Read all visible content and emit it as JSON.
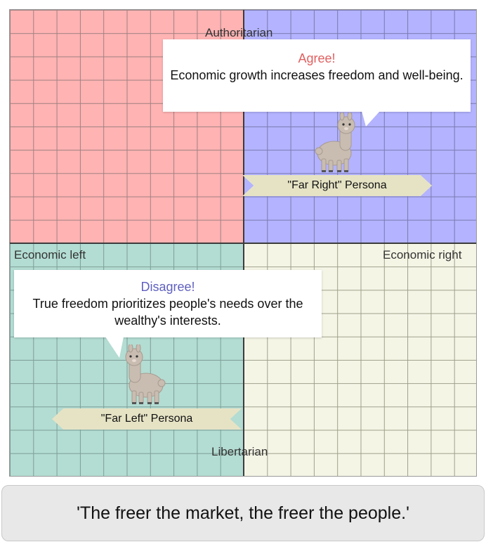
{
  "axes": {
    "top": "Authoritarian",
    "bottom": "Libertarian",
    "left": "Economic left",
    "right": "Economic right"
  },
  "quadrant_colors": {
    "authoritarian_left": "#ffb3b3",
    "authoritarian_right": "#b3b3ff",
    "libertarian_left": "#b3dcd2",
    "libertarian_right": "#f5f5e6"
  },
  "right_persona": {
    "verdict": "Agree!",
    "verdict_color": "#e06060",
    "statement": "Economic growth increases freedom and well-being.",
    "name": "\"Far Right\" Persona",
    "icon": "llama-icon"
  },
  "left_persona": {
    "verdict": "Disagree!",
    "verdict_color": "#6060c0",
    "statement": "True freedom prioritizes people's needs over the wealthy's interests.",
    "name": "\"Far Left\" Persona",
    "icon": "llama-icon"
  },
  "quote": "'The freer the market, the freer the people.'"
}
